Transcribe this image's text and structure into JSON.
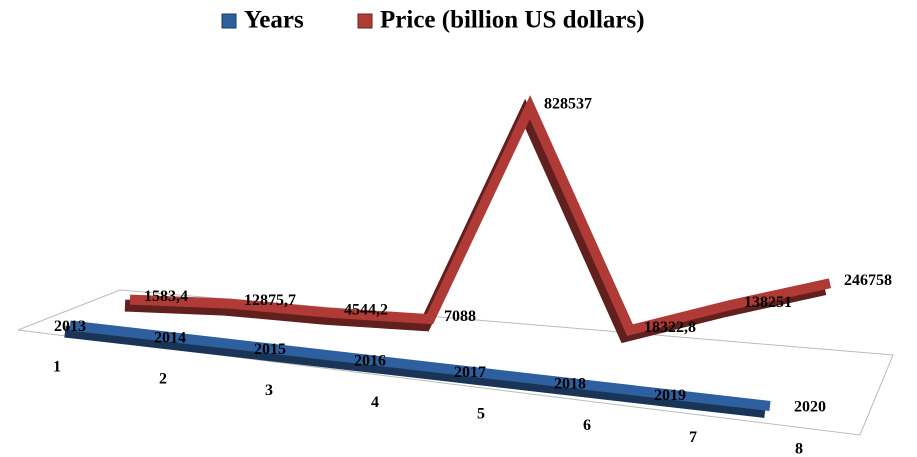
{
  "chart_data": {
    "type": "line",
    "categories": [
      1,
      2,
      3,
      4,
      5,
      6,
      7,
      8
    ],
    "series": [
      {
        "name": "Years",
        "color": "#2e5f9e",
        "values": [
          2013,
          2014,
          2015,
          2016,
          2017,
          2018,
          2019,
          2020
        ]
      },
      {
        "name": "Price (billion US dollars)",
        "color": "#b03a36",
        "values": [
          1583.4,
          12875.7,
          4544.2,
          7088,
          828537,
          18322.8,
          138251,
          246758
        ],
        "value_labels": [
          "1583,4",
          "12875,7",
          "4544,2",
          "7088",
          "828537",
          "18322,8",
          "138251",
          "246758"
        ]
      }
    ],
    "ylim": [
      0,
      900000
    ],
    "legend": "top"
  }
}
